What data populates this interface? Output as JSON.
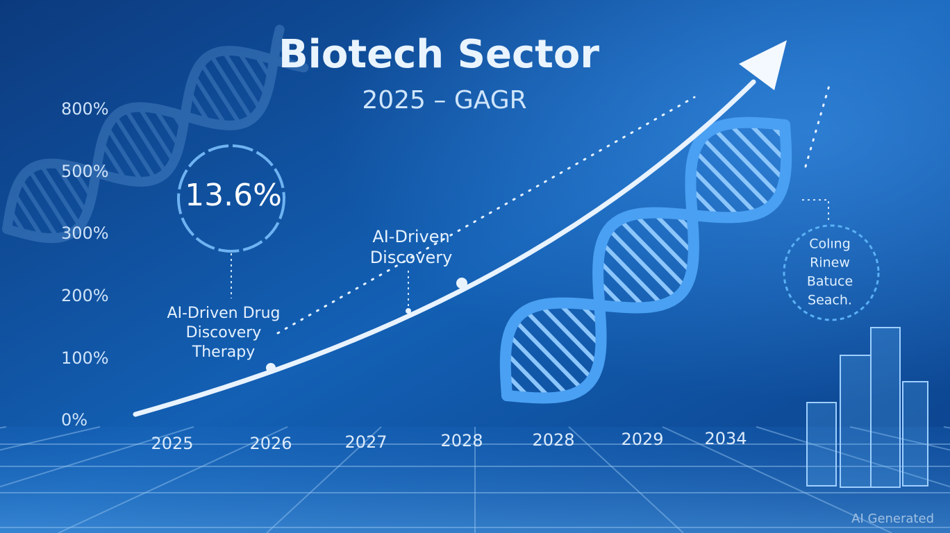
{
  "title": "Biotech Sector",
  "subtitle": "2025 – GAGR",
  "y_axis_labels": [
    "800%",
    "500%",
    "300%",
    "200%",
    "100%",
    "0%"
  ],
  "x_axis_labels": [
    "2025",
    "2026",
    "2027",
    "2028",
    "2028",
    "2029",
    "2034"
  ],
  "highlight": "13.6%",
  "callout_left": [
    "AI-Driven Drug",
    "Discovery",
    "Therapy"
  ],
  "callout_mid": [
    "AI-Driven",
    "Discovery"
  ],
  "callout_right": [
    "Colıng",
    "Rinew",
    "Batuce",
    "Seach."
  ],
  "watermark": "AI Generated"
}
